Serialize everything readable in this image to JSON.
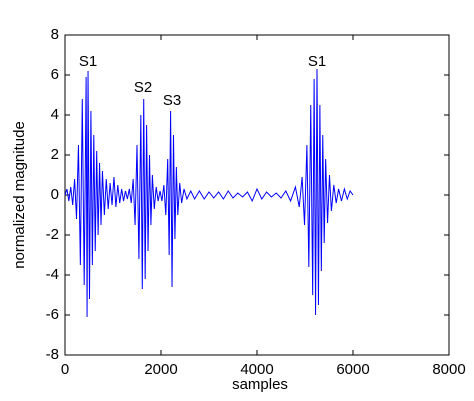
{
  "chart_data": {
    "type": "line",
    "xlabel": "samples",
    "ylabel": "normalized magnitude",
    "color": "#0000ff",
    "xlim": [
      0,
      8000
    ],
    "xticks": [
      0,
      2000,
      4000,
      6000,
      8000
    ],
    "ylim": [
      -8,
      8
    ],
    "yticks": [
      -8,
      -6,
      -4,
      -2,
      0,
      2,
      4,
      6,
      8
    ],
    "grid": false,
    "annotations": [
      "S1",
      "S2",
      "S3",
      "S1"
    ],
    "x": [
      0,
      40,
      80,
      120,
      160,
      200,
      240,
      280,
      320,
      360,
      400,
      440,
      460,
      480,
      510,
      540,
      570,
      600,
      630,
      660,
      690,
      720,
      750,
      780,
      820,
      860,
      900,
      940,
      980,
      1020,
      1060,
      1100,
      1140,
      1180,
      1220,
      1260,
      1300,
      1340,
      1380,
      1420,
      1460,
      1500,
      1540,
      1580,
      1610,
      1640,
      1670,
      1700,
      1730,
      1760,
      1790,
      1820,
      1860,
      1900,
      1940,
      1980,
      2020,
      2060,
      2100,
      2140,
      2170,
      2200,
      2230,
      2260,
      2290,
      2320,
      2350,
      2390,
      2430,
      2480,
      2540,
      2620,
      2700,
      2800,
      2900,
      3000,
      3100,
      3200,
      3300,
      3400,
      3500,
      3600,
      3700,
      3800,
      3900,
      4000,
      4100,
      4200,
      4300,
      4400,
      4500,
      4600,
      4700,
      4800,
      4880,
      4940,
      4990,
      5040,
      5080,
      5120,
      5160,
      5190,
      5220,
      5250,
      5280,
      5310,
      5340,
      5370,
      5400,
      5430,
      5470,
      5510,
      5550,
      5600,
      5650,
      5700,
      5760,
      5820,
      5880,
      5940,
      6000
    ],
    "values": [
      0,
      0.3,
      -0.3,
      0.4,
      -0.5,
      0.8,
      -1.2,
      2.5,
      -3.5,
      4.8,
      -4.5,
      5.9,
      -6.1,
      6.2,
      -5.2,
      4.2,
      -3.5,
      3.0,
      -2.8,
      2.2,
      -2.0,
      1.6,
      -1.5,
      1.2,
      -1.0,
      0.8,
      -0.7,
      0.6,
      -0.5,
      0.9,
      -0.6,
      0.5,
      -0.4,
      0.3,
      -0.3,
      0.2,
      -0.2,
      0.3,
      -0.4,
      0.8,
      -1.5,
      2.5,
      -3.2,
      4.0,
      -4.7,
      4.8,
      -4.2,
      3.5,
      -2.8,
      2.0,
      -1.5,
      1.0,
      -0.7,
      0.4,
      -0.3,
      0.2,
      -0.3,
      0.5,
      -1.0,
      1.8,
      -3.0,
      4.2,
      -4.6,
      3.0,
      -2.2,
      1.4,
      -1.0,
      0.6,
      -0.4,
      0.3,
      -0.2,
      0.2,
      -0.2,
      0.2,
      -0.2,
      0.15,
      -0.15,
      0.15,
      -0.2,
      0.2,
      -0.15,
      0.1,
      -0.1,
      0.15,
      -0.3,
      0.3,
      -0.2,
      0.15,
      -0.1,
      0.1,
      -0.15,
      0.2,
      -0.3,
      0.4,
      -0.6,
      0.9,
      -1.5,
      2.5,
      -3.6,
      4.5,
      -5.0,
      5.8,
      -6.0,
      6.3,
      -5.5,
      4.5,
      -3.8,
      3.0,
      -2.4,
      1.8,
      -1.4,
      1.0,
      -0.8,
      0.5,
      -0.4,
      0.3,
      -0.3,
      0.3,
      -0.2,
      0.2,
      0
    ]
  }
}
